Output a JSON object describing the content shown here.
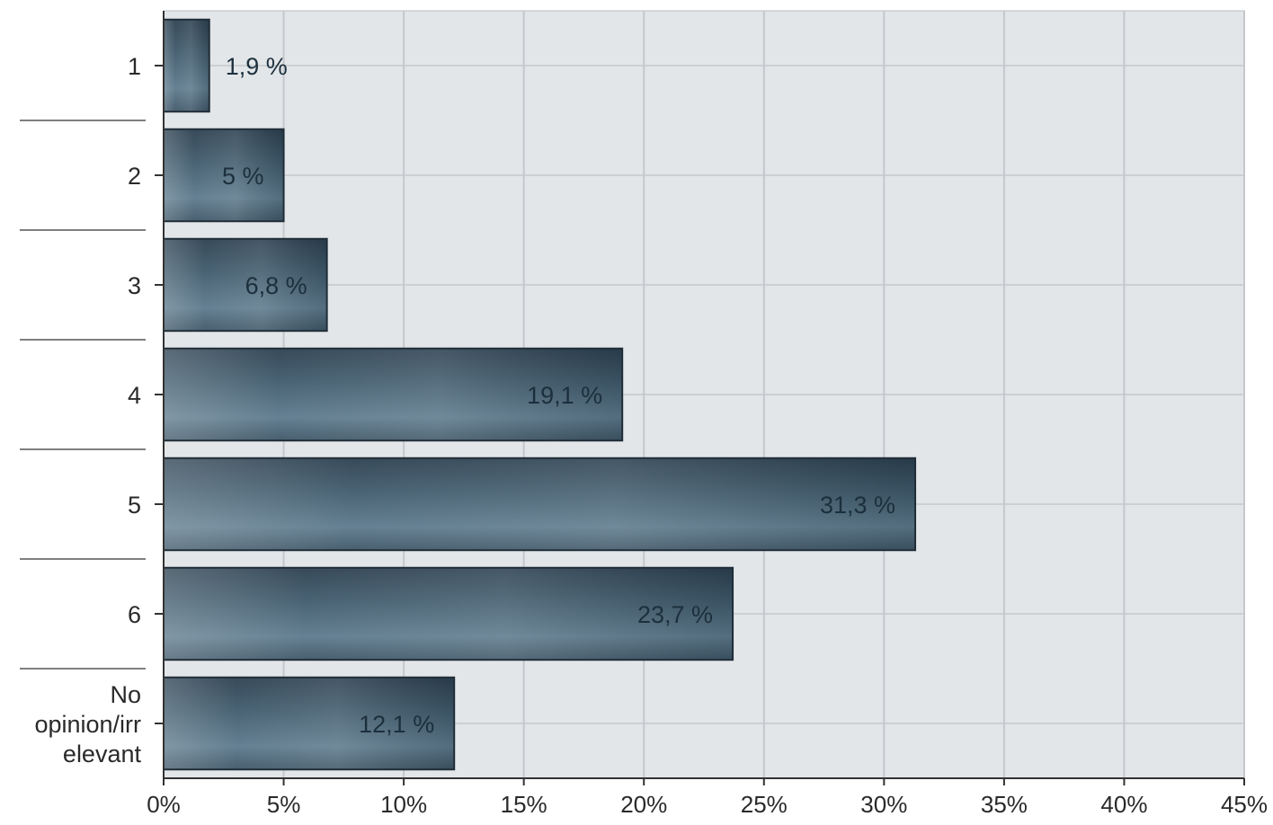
{
  "chart_data": {
    "type": "bar",
    "orientation": "horizontal",
    "categories": [
      "1",
      "2",
      "3",
      "4",
      "5",
      "6",
      "No opinion/irrelevant"
    ],
    "category_label_lines": [
      [
        "1"
      ],
      [
        "2"
      ],
      [
        "3"
      ],
      [
        "4"
      ],
      [
        "5"
      ],
      [
        "6"
      ],
      [
        "No",
        "opinion/irr",
        "elevant"
      ]
    ],
    "values": [
      1.9,
      5,
      6.8,
      19.1,
      31.3,
      23.7,
      12.1
    ],
    "data_labels": [
      "1,9 %",
      "5 %",
      "6,8 %",
      "19,1 %",
      "31,3 %",
      "23,7 %",
      "12,1 %"
    ],
    "x_ticks": [
      0,
      5,
      10,
      15,
      20,
      25,
      30,
      35,
      40,
      45
    ],
    "x_tick_labels": [
      "0%",
      "5%",
      "10%",
      "15%",
      "20%",
      "25%",
      "30%",
      "35%",
      "40%",
      "45%"
    ],
    "xlim": [
      0,
      45
    ],
    "grid": true,
    "legend": "none",
    "colors": {
      "plot_background": "#e3e6e9",
      "grid": "#c4c8cc",
      "bar_dark": "#2f4656",
      "bar_light": "#6f8a9c",
      "bar_border": "#1f2d38",
      "axis": "#333333"
    }
  }
}
